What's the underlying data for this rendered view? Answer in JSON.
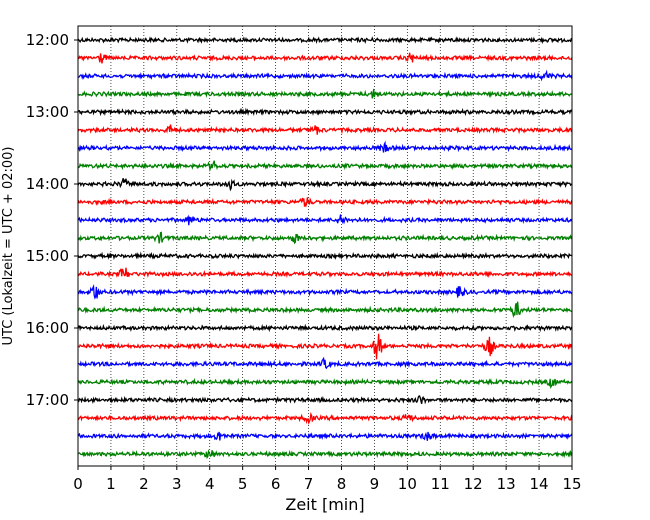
{
  "chart_data": {
    "type": "line",
    "title": "",
    "xlabel": "Zeit  [min]",
    "ylabel": "UTC (Lokalzeit = UTC + 02:00)",
    "xlim": [
      0,
      15
    ],
    "x_ticks": [
      "0",
      "1",
      "2",
      "3",
      "4",
      "5",
      "6",
      "7",
      "8",
      "9",
      "10",
      "11",
      "12",
      "13",
      "14",
      "15"
    ],
    "y_tick_labels": [
      "12:00",
      "13:00",
      "14:00",
      "15:00",
      "16:00",
      "17:00"
    ],
    "grid": "vertical dotted",
    "colors": {
      "cycle": [
        "#000000",
        "#ff0000",
        "#0000ff",
        "#008000"
      ]
    },
    "rows": [
      {
        "label": "12:00",
        "color": "#000000",
        "events": []
      },
      {
        "label": "12:15",
        "color": "#ff0000",
        "events": [
          {
            "t": 0.7,
            "amp": 1.2
          },
          {
            "t": 10.1,
            "amp": 1.1
          }
        ]
      },
      {
        "label": "12:30",
        "color": "#0000ff",
        "events": [
          {
            "t": 14.2,
            "amp": 1.0
          }
        ]
      },
      {
        "label": "12:45",
        "color": "#008000",
        "events": [
          {
            "t": 9.0,
            "amp": 1.0
          }
        ]
      },
      {
        "label": "13:00",
        "color": "#000000",
        "events": []
      },
      {
        "label": "13:15",
        "color": "#ff0000",
        "events": [
          {
            "t": 2.8,
            "amp": 1.0
          },
          {
            "t": 7.2,
            "amp": 1.0
          }
        ]
      },
      {
        "label": "13:30",
        "color": "#0000ff",
        "events": [
          {
            "t": 9.3,
            "amp": 1.0
          }
        ]
      },
      {
        "label": "13:45",
        "color": "#008000",
        "events": [
          {
            "t": 4.1,
            "amp": 1.0
          }
        ]
      },
      {
        "label": "14:00",
        "color": "#000000",
        "events": [
          {
            "t": 1.4,
            "amp": 1.2
          },
          {
            "t": 4.6,
            "amp": 1.1
          }
        ]
      },
      {
        "label": "14:15",
        "color": "#ff0000",
        "events": [
          {
            "t": 6.9,
            "amp": 1.2
          }
        ]
      },
      {
        "label": "14:30",
        "color": "#0000ff",
        "events": [
          {
            "t": 3.4,
            "amp": 1.0
          },
          {
            "t": 8.0,
            "amp": 1.0
          }
        ]
      },
      {
        "label": "14:45",
        "color": "#008000",
        "events": [
          {
            "t": 2.5,
            "amp": 1.0
          },
          {
            "t": 6.6,
            "amp": 1.0
          }
        ]
      },
      {
        "label": "15:00",
        "color": "#000000",
        "events": []
      },
      {
        "label": "15:15",
        "color": "#ff0000",
        "events": [
          {
            "t": 1.4,
            "amp": 1.6
          }
        ]
      },
      {
        "label": "15:30",
        "color": "#0000ff",
        "events": [
          {
            "t": 0.5,
            "amp": 2.0
          },
          {
            "t": 11.6,
            "amp": 1.3
          }
        ]
      },
      {
        "label": "15:45",
        "color": "#008000",
        "events": [
          {
            "t": 13.3,
            "amp": 2.0
          }
        ]
      },
      {
        "label": "16:00",
        "color": "#000000",
        "events": []
      },
      {
        "label": "16:15",
        "color": "#ff0000",
        "events": [
          {
            "t": 9.1,
            "amp": 3.2
          },
          {
            "t": 12.5,
            "amp": 2.3
          }
        ]
      },
      {
        "label": "16:30",
        "color": "#0000ff",
        "events": [
          {
            "t": 7.5,
            "amp": 1.0
          }
        ]
      },
      {
        "label": "16:45",
        "color": "#008000",
        "events": [
          {
            "t": 14.4,
            "amp": 1.0
          }
        ]
      },
      {
        "label": "17:00",
        "color": "#000000",
        "events": [
          {
            "t": 10.4,
            "amp": 1.0
          }
        ]
      },
      {
        "label": "17:15",
        "color": "#ff0000",
        "events": [
          {
            "t": 7.0,
            "amp": 1.0
          },
          {
            "t": 10.0,
            "amp": 1.0
          }
        ]
      },
      {
        "label": "17:30",
        "color": "#0000ff",
        "events": [
          {
            "t": 4.3,
            "amp": 1.3
          },
          {
            "t": 10.6,
            "amp": 1.0
          }
        ]
      },
      {
        "label": "17:45",
        "color": "#008000",
        "events": [
          {
            "t": 4.0,
            "amp": 1.1
          }
        ]
      }
    ]
  }
}
